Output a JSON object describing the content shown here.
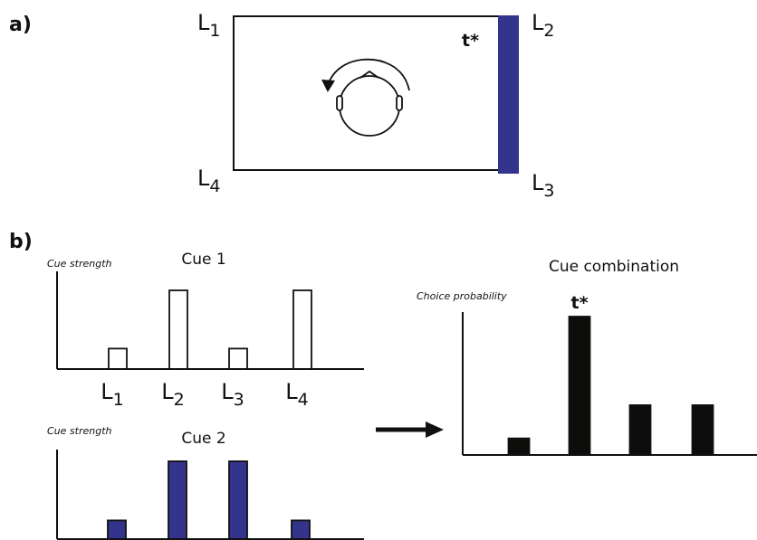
{
  "panel_a": {
    "label": "a)",
    "corners": [
      {
        "letter": "L",
        "subscript": "1"
      },
      {
        "letter": "L",
        "subscript": "2"
      },
      {
        "letter": "L",
        "subscript": "3"
      },
      {
        "letter": "L",
        "subscript": "4"
      }
    ],
    "target": "t*",
    "target_color": "#34348c"
  },
  "panel_b": {
    "label": "b)"
  },
  "chart_data": [
    {
      "type": "bar",
      "title": "Cue 1",
      "ylabel": "Cue strength",
      "categories": [
        {
          "letter": "L",
          "subscript": "1"
        },
        {
          "letter": "L",
          "subscript": "2"
        },
        {
          "letter": "L",
          "subscript": "3"
        },
        {
          "letter": "L",
          "subscript": "4"
        }
      ],
      "values": [
        0.26,
        1,
        0.26,
        1
      ],
      "color": "#ffffff"
    },
    {
      "type": "bar",
      "title": "Cue 2",
      "ylabel": "Cue strength",
      "values": [
        0.24,
        1,
        1,
        0.24
      ],
      "color": "#34348c"
    },
    {
      "type": "bar",
      "title": "Cue combination",
      "ylabel": "Choice probability",
      "values": [
        0.12,
        1,
        0.36,
        0.36
      ],
      "color": "#0d0d0b",
      "annotation": "t*",
      "annotation_index": 1
    }
  ]
}
